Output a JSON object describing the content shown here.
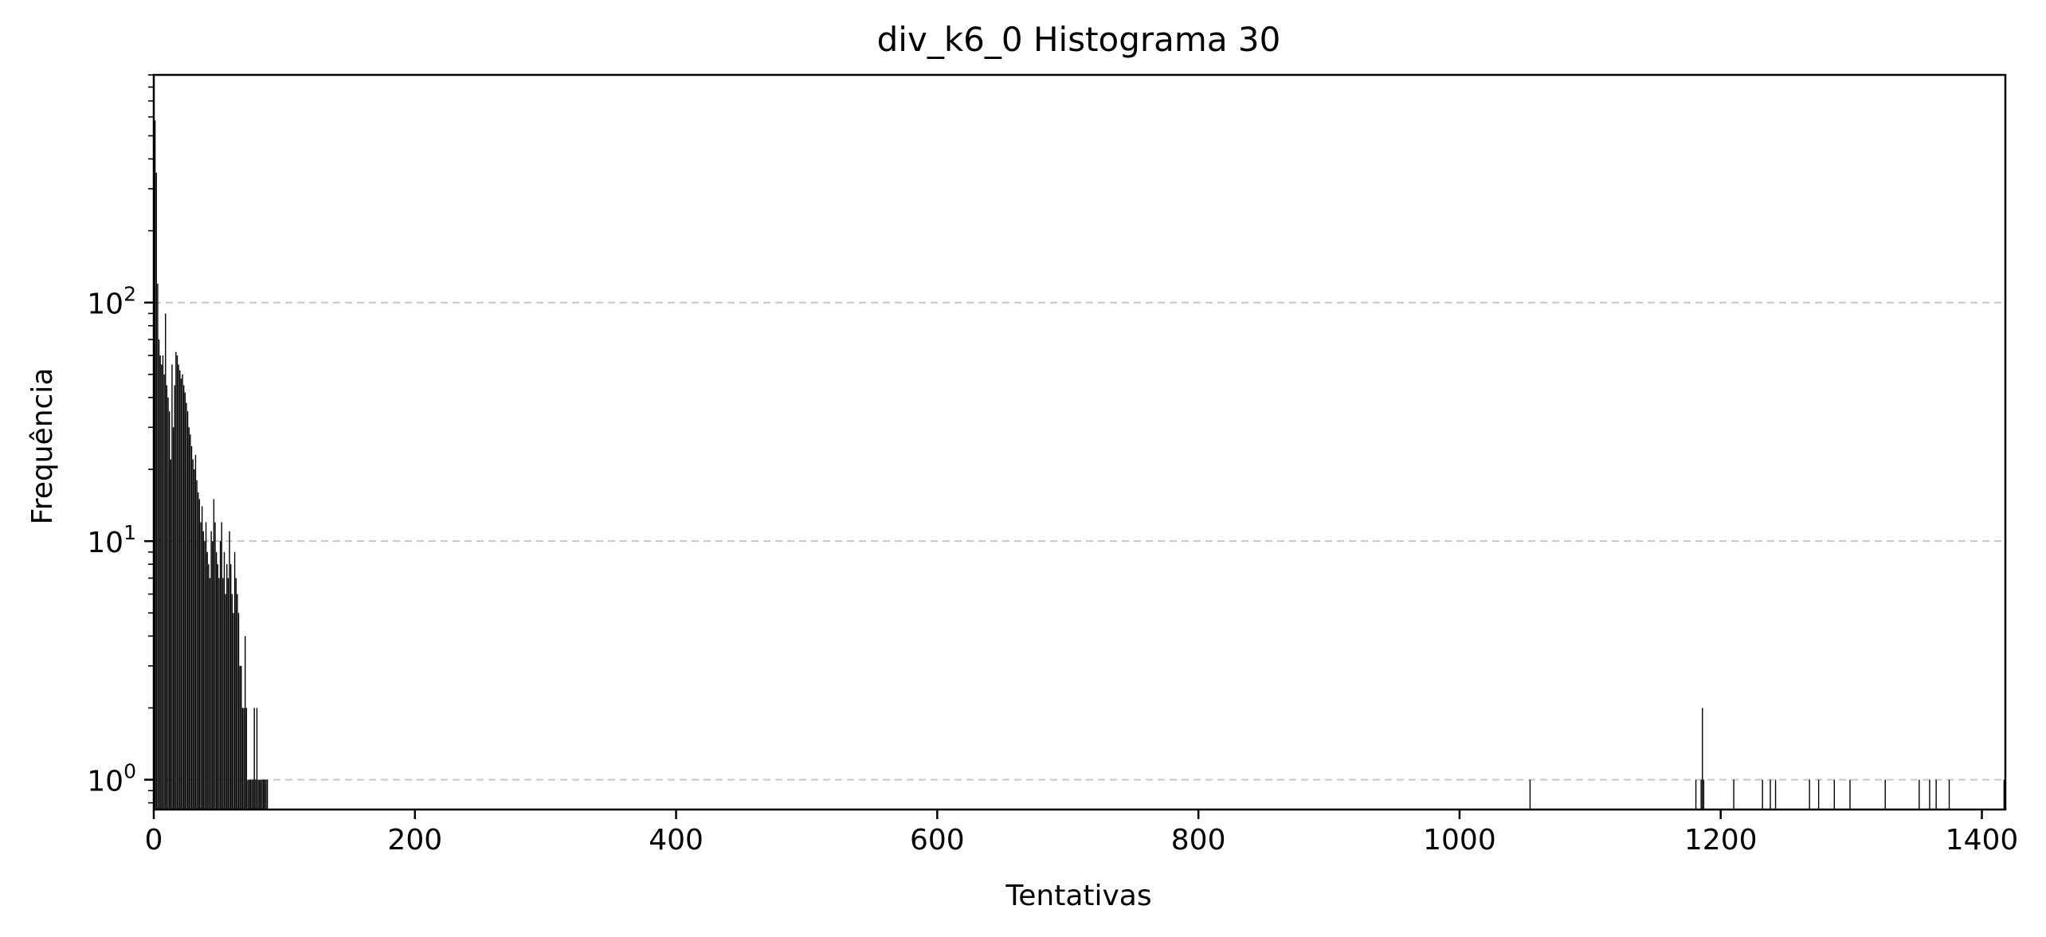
{
  "chart_data": {
    "type": "bar",
    "title": "div_k6_0 Histograma 30",
    "xlabel": "Tentativas",
    "ylabel": "Frequência",
    "xlim": [
      0,
      1418
    ],
    "ylim": [
      0.75,
      900
    ],
    "yscale": "log",
    "grid": "y-major-dashed",
    "bar_color": "#000000",
    "grid_color": "#c8c8c8",
    "xticks": [
      0,
      200,
      400,
      600,
      800,
      1000,
      1200,
      1400
    ],
    "xtick_labels": [
      "0",
      "200",
      "400",
      "600",
      "800",
      "1000",
      "1200",
      "1400"
    ],
    "yticks": [
      1,
      10,
      100
    ],
    "ytick_labels": [
      {
        "base": "10",
        "exp": "0"
      },
      {
        "base": "10",
        "exp": "1"
      },
      {
        "base": "10",
        "exp": "2"
      }
    ],
    "x": [
      1,
      2,
      3,
      4,
      5,
      6,
      7,
      8,
      9,
      10,
      11,
      12,
      13,
      14,
      15,
      16,
      17,
      18,
      19,
      20,
      21,
      22,
      23,
      24,
      25,
      26,
      27,
      28,
      29,
      30,
      31,
      32,
      33,
      34,
      35,
      36,
      37,
      38,
      39,
      40,
      41,
      42,
      43,
      44,
      45,
      46,
      47,
      48,
      49,
      50,
      51,
      52,
      53,
      54,
      55,
      56,
      57,
      58,
      59,
      60,
      61,
      62,
      63,
      64,
      65,
      66,
      67,
      68,
      69,
      70,
      71,
      72,
      73,
      74,
      75,
      76,
      77,
      78,
      79,
      80,
      81,
      82,
      83,
      84,
      85,
      86,
      87,
      1054,
      1181,
      1185,
      1186,
      1187,
      1210,
      1232,
      1238,
      1242,
      1268,
      1275,
      1287,
      1299,
      1326,
      1352,
      1360,
      1365,
      1375,
      1417
    ],
    "values": [
      580,
      350,
      120,
      70,
      60,
      55,
      60,
      50,
      90,
      45,
      40,
      35,
      22,
      55,
      30,
      45,
      62,
      60,
      55,
      52,
      48,
      50,
      45,
      42,
      38,
      35,
      30,
      28,
      25,
      22,
      20,
      23,
      18,
      16,
      15,
      12,
      14,
      11,
      10,
      12,
      9,
      8,
      7,
      11,
      10,
      15,
      12,
      9,
      8,
      7,
      10,
      12,
      7,
      9,
      6,
      8,
      7,
      11,
      8,
      6,
      5,
      9,
      7,
      6,
      5,
      3,
      3,
      2,
      2,
      4,
      2,
      1,
      1,
      1,
      1,
      1,
      2,
      1,
      2,
      1,
      1,
      1,
      1,
      1,
      1,
      1,
      1,
      1,
      1,
      1,
      2,
      1,
      1,
      1,
      1,
      1,
      1,
      1,
      1,
      1,
      1,
      1,
      1,
      1,
      1,
      1
    ]
  }
}
